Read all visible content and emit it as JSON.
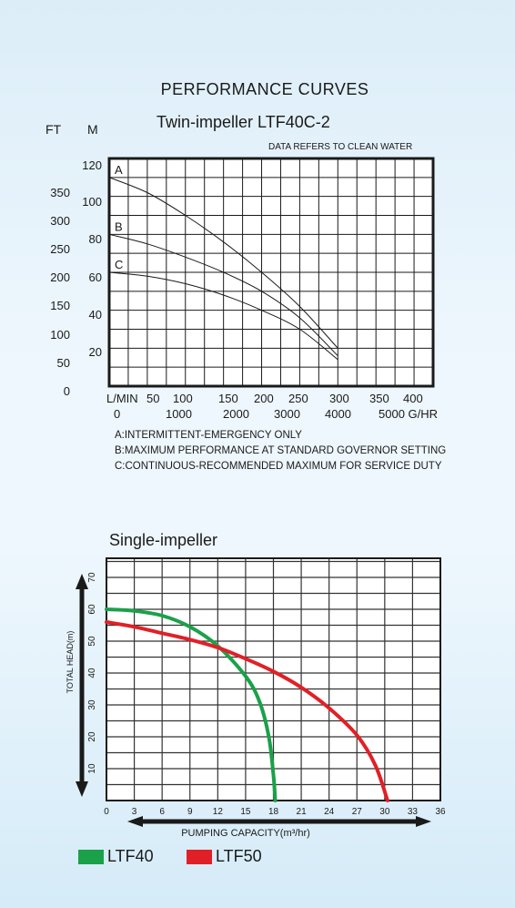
{
  "header": {
    "title": "PERFORMANCE CURVES",
    "subtitle": "Twin-impeller LTF40C-2",
    "unit_ft": "FT",
    "unit_m": "M",
    "note": "DATA REFERS TO CLEAN WATER"
  },
  "notes": [
    "A:INTERMITTENT-EMERGENCY ONLY",
    "B:MAXIMUM PERFORMANCE AT STANDARD GOVERNOR SETTING",
    "C:CONTINUOUS-RECOMMENDED MAXIMUM FOR SERVICE DUTY"
  ],
  "single_title": "Single-impeller",
  "legend": [
    {
      "label": "LTF40",
      "color": "#1aa14a"
    },
    {
      "label": "LTF50",
      "color": "#e02027"
    }
  ],
  "chart_data": [
    {
      "type": "line",
      "title": "Twin-impeller LTF40C-2",
      "x_ticks_lmin": [
        "L/MIN",
        "50",
        "100",
        "150",
        "200",
        "250",
        "300",
        "350",
        "400"
      ],
      "x_ticks_ghr": [
        "0",
        "1000",
        "2000",
        "3000",
        "4000",
        "5000 G/HR"
      ],
      "y_ticks_m": [
        "120",
        "100",
        "80",
        "60",
        "40",
        "20"
      ],
      "y_ticks_ft": [
        "350",
        "300",
        "250",
        "200",
        "150",
        "100",
        "50",
        "0"
      ],
      "xlim": [
        0,
        425
      ],
      "ylim": [
        0,
        120
      ],
      "grid": true,
      "series": [
        {
          "name": "A",
          "x": [
            0,
            50,
            100,
            150,
            200,
            250,
            300
          ],
          "y": [
            110,
            102,
            90,
            76,
            60,
            42,
            20
          ]
        },
        {
          "name": "B",
          "x": [
            0,
            50,
            100,
            150,
            200,
            250,
            300
          ],
          "y": [
            80,
            75,
            68,
            60,
            50,
            36,
            16
          ]
        },
        {
          "name": "C",
          "x": [
            0,
            50,
            100,
            150,
            200,
            250,
            300
          ],
          "y": [
            60,
            58,
            54,
            48,
            40,
            30,
            14
          ]
        }
      ]
    },
    {
      "type": "line",
      "title": "Single-impeller",
      "xlabel": "PUMPING CAPACITY(m³/hr)",
      "ylabel": "TOTAL HEAD(m)",
      "x_ticks": [
        "0",
        "3",
        "6",
        "9",
        "12",
        "15",
        "18",
        "21",
        "24",
        "27",
        "30",
        "33",
        "36"
      ],
      "y_ticks": [
        "10",
        "20",
        "30",
        "40",
        "50",
        "60",
        "70"
      ],
      "xlim": [
        0,
        36
      ],
      "ylim": [
        0,
        76
      ],
      "grid": true,
      "series": [
        {
          "name": "LTF40",
          "x": [
            0,
            3,
            6,
            9,
            12,
            15,
            16.5,
            17.5,
            18,
            18.2
          ],
          "y": [
            60,
            59.5,
            58,
            54.5,
            48.5,
            39,
            31,
            20,
            8,
            0
          ]
        },
        {
          "name": "LTF50",
          "x": [
            0,
            3,
            6,
            9,
            12,
            15,
            18,
            21,
            24,
            27,
            29,
            30.3
          ],
          "y": [
            56,
            54.5,
            52.5,
            50.5,
            48,
            44.5,
            40.5,
            35.5,
            29,
            20.5,
            11,
            0
          ]
        }
      ]
    }
  ]
}
